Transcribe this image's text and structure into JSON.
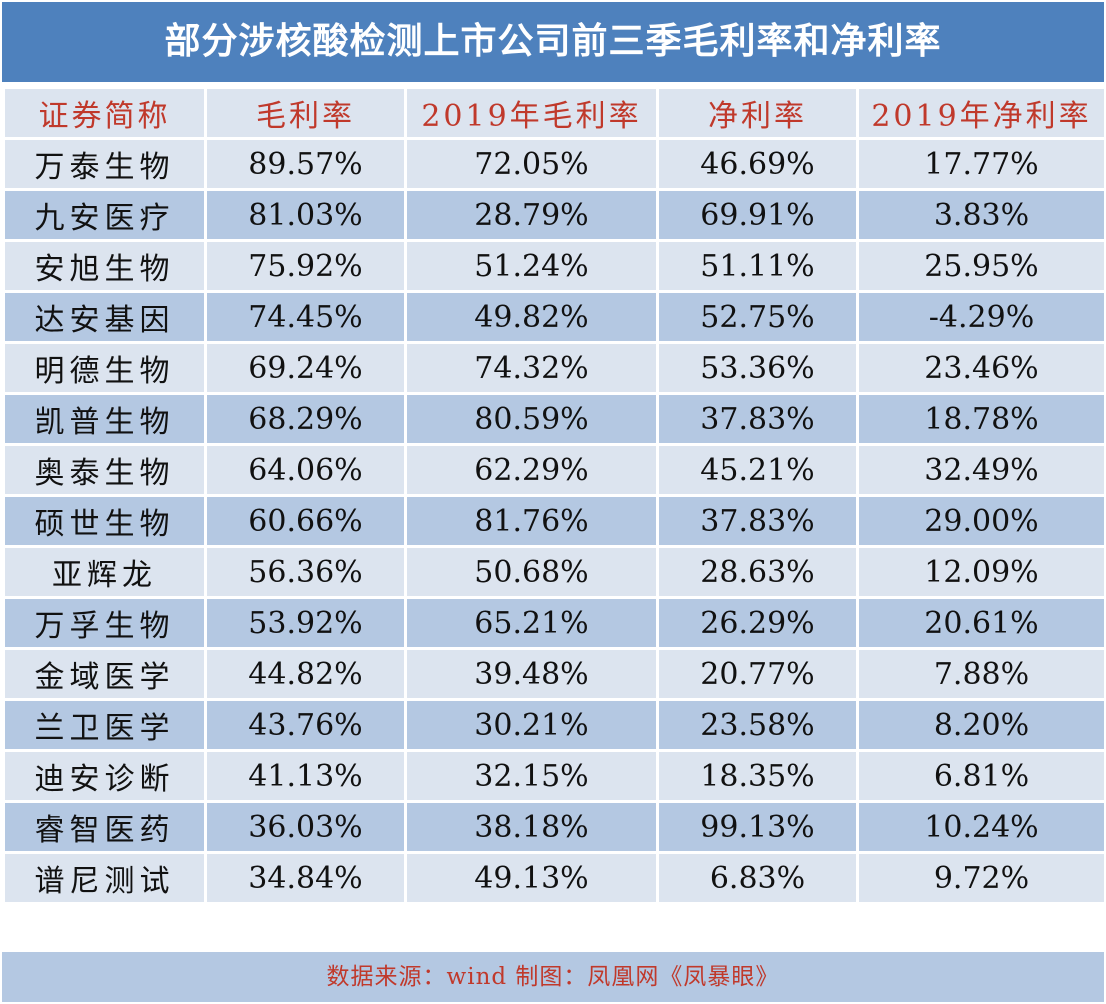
{
  "title": "部分涉核酸检测上市公司前三季毛利率和净利率",
  "chart_data": {
    "type": "table",
    "columns": [
      "证券简称",
      "毛利率",
      "2019年毛利率",
      "净利率",
      "2019年净利率"
    ],
    "rows": [
      [
        "万泰生物",
        "89.57%",
        "72.05%",
        "46.69%",
        "17.77%"
      ],
      [
        "九安医疗",
        "81.03%",
        "28.79%",
        "69.91%",
        "3.83%"
      ],
      [
        "安旭生物",
        "75.92%",
        "51.24%",
        "51.11%",
        "25.95%"
      ],
      [
        "达安基因",
        "74.45%",
        "49.82%",
        "52.75%",
        "-4.29%"
      ],
      [
        "明德生物",
        "69.24%",
        "74.32%",
        "53.36%",
        "23.46%"
      ],
      [
        "凯普生物",
        "68.29%",
        "80.59%",
        "37.83%",
        "18.78%"
      ],
      [
        "奥泰生物",
        "64.06%",
        "62.29%",
        "45.21%",
        "32.49%"
      ],
      [
        "硕世生物",
        "60.66%",
        "81.76%",
        "37.83%",
        "29.00%"
      ],
      [
        "亚辉龙",
        "56.36%",
        "50.68%",
        "28.63%",
        "12.09%"
      ],
      [
        "万孚生物",
        "53.92%",
        "65.21%",
        "26.29%",
        "20.61%"
      ],
      [
        "金域医学",
        "44.82%",
        "39.48%",
        "20.77%",
        "7.88%"
      ],
      [
        "兰卫医学",
        "43.76%",
        "30.21%",
        "23.58%",
        "8.20%"
      ],
      [
        "迪安诊断",
        "41.13%",
        "32.15%",
        "18.35%",
        "6.81%"
      ],
      [
        "睿智医药",
        "36.03%",
        "38.18%",
        "99.13%",
        "10.24%"
      ],
      [
        "谱尼测试",
        "34.84%",
        "49.13%",
        "6.83%",
        "9.72%"
      ]
    ]
  },
  "footer": "数据来源：wind 制图：凤凰网《凤暴眼》",
  "colors": {
    "title_bg": "#4e81bd",
    "row_light": "#dce4ef",
    "row_dark": "#b4c8e2",
    "header_text": "#c0392b",
    "footer_text": "#c0392b"
  }
}
